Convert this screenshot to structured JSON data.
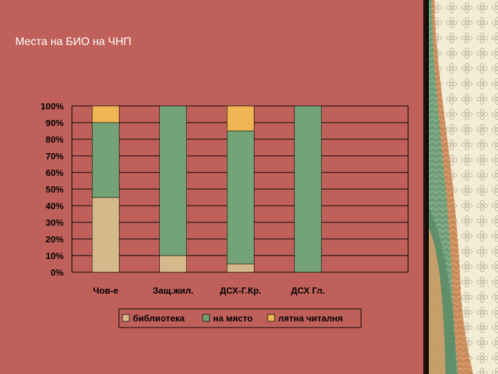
{
  "slide": {
    "title": "Места на БИО на ЧНП"
  },
  "colors": {
    "slide_bg": "#c0605a",
    "library": "#d6b98b",
    "on_site": "#74a377",
    "summer": "#f0b653",
    "plot_bg": "#c0605a"
  },
  "chart_data": {
    "type": "bar",
    "stacked": "percent",
    "categories": [
      "Чов-е",
      "Защ.жил.",
      "ДСХ-Г.Кр.",
      "ДСХ Гл."
    ],
    "series": [
      {
        "name": "библиотека",
        "values": [
          45,
          10,
          5,
          0
        ]
      },
      {
        "name": "на място",
        "values": [
          45,
          90,
          80,
          100
        ]
      },
      {
        "name": "лятна читалня",
        "values": [
          10,
          0,
          15,
          0
        ]
      }
    ],
    "y_ticks": [
      "0%",
      "10%",
      "20%",
      "30%",
      "40%",
      "50%",
      "60%",
      "70%",
      "80%",
      "90%",
      "100%"
    ],
    "ylim": [
      0,
      100
    ],
    "grid": true,
    "legend": "bottom"
  }
}
